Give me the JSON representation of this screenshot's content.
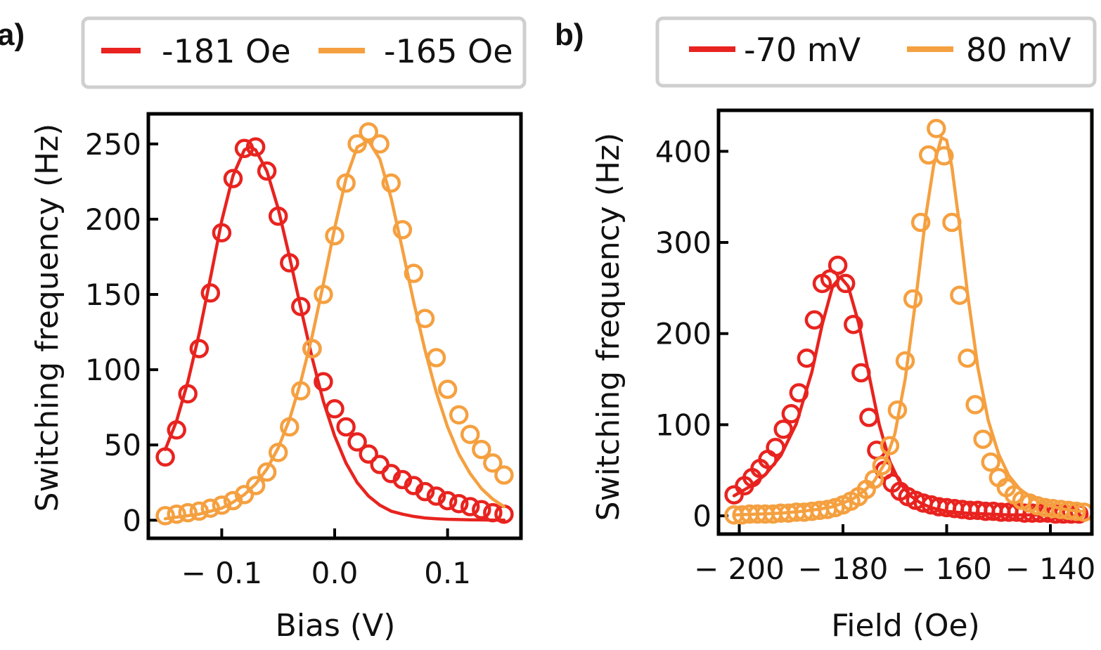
{
  "chart_data": [
    {
      "type": "scatter",
      "panel_label": "a)",
      "title": "",
      "xlabel": "Bias (V)",
      "ylabel": "Switching  frequency  (Hz)",
      "xlim": [
        -0.165,
        0.165
      ],
      "ylim": [
        -12,
        270
      ],
      "xticks": [
        -0.1,
        0.0,
        0.1
      ],
      "xtick_labels": [
        "− 0.1",
        "0.0",
        "0.1"
      ],
      "yticks": [
        0,
        50,
        100,
        150,
        200,
        250
      ],
      "ytick_labels": [
        "0",
        "50",
        "100",
        "150",
        "200",
        "250"
      ],
      "grid": false,
      "legend_position": "top",
      "series": [
        {
          "name": "-181 Oe",
          "color": "#e8231f",
          "marker": "open-circle",
          "x": [
            -0.15,
            -0.14,
            -0.13,
            -0.12,
            -0.11,
            -0.1,
            -0.09,
            -0.08,
            -0.07,
            -0.06,
            -0.05,
            -0.04,
            -0.03,
            -0.02,
            -0.01,
            0.0,
            0.01,
            0.02,
            0.03,
            0.04,
            0.05,
            0.06,
            0.07,
            0.08,
            0.09,
            0.1,
            0.11,
            0.12,
            0.13,
            0.14,
            0.15
          ],
          "y": [
            42,
            60,
            84,
            114,
            151,
            191,
            227,
            247,
            248,
            232,
            202,
            171,
            142,
            114,
            92,
            74,
            62,
            52,
            44,
            37,
            31,
            27,
            23,
            19,
            16,
            13,
            11,
            9,
            7,
            5,
            4
          ],
          "fit_x": [
            -0.15,
            -0.14,
            -0.13,
            -0.12,
            -0.11,
            -0.1,
            -0.09,
            -0.08,
            -0.075,
            -0.07,
            -0.06,
            -0.05,
            -0.04,
            -0.03,
            -0.02,
            -0.01,
            0.0,
            0.01,
            0.02,
            0.03,
            0.04,
            0.05,
            0.06,
            0.07,
            0.08,
            0.09,
            0.1,
            0.11,
            0.12,
            0.13,
            0.14,
            0.15
          ],
          "fit_y": [
            47,
            66,
            92,
            124,
            161,
            199,
            229,
            246,
            248,
            246,
            232,
            207,
            175,
            141,
            108,
            79,
            56,
            38,
            25,
            16,
            10,
            6,
            4,
            2.5,
            1.5,
            1,
            0.6,
            0.4,
            0.3,
            0.2,
            0.1,
            0.1
          ]
        },
        {
          "name": "-165 Oe",
          "color": "#f5a040",
          "marker": "open-circle",
          "x": [
            -0.15,
            -0.14,
            -0.13,
            -0.12,
            -0.11,
            -0.1,
            -0.09,
            -0.08,
            -0.07,
            -0.06,
            -0.05,
            -0.04,
            -0.03,
            -0.02,
            -0.01,
            0.0,
            0.01,
            0.02,
            0.03,
            0.04,
            0.05,
            0.06,
            0.07,
            0.08,
            0.09,
            0.1,
            0.11,
            0.12,
            0.13,
            0.14,
            0.15
          ],
          "y": [
            3,
            4,
            5,
            6,
            8,
            10,
            13,
            17,
            23,
            32,
            45,
            62,
            86,
            114,
            150,
            189,
            224,
            250,
            258,
            250,
            224,
            193,
            164,
            134,
            108,
            87,
            70,
            57,
            47,
            38,
            30
          ],
          "fit_x": [
            -0.15,
            -0.14,
            -0.13,
            -0.12,
            -0.11,
            -0.1,
            -0.09,
            -0.08,
            -0.07,
            -0.06,
            -0.05,
            -0.04,
            -0.03,
            -0.02,
            -0.01,
            0.0,
            0.01,
            0.02,
            0.03,
            0.04,
            0.05,
            0.06,
            0.07,
            0.08,
            0.09,
            0.1,
            0.11,
            0.12,
            0.13,
            0.14,
            0.15
          ],
          "fit_y": [
            1,
            2,
            3,
            4,
            6,
            8,
            12,
            17,
            24,
            34,
            48,
            67,
            92,
            122,
            157,
            194,
            227,
            248,
            252,
            240,
            214,
            180,
            145,
            113,
            85,
            62,
            44,
            31,
            21,
            14,
            9
          ]
        }
      ]
    },
    {
      "type": "scatter",
      "panel_label": "b)",
      "title": "",
      "xlabel": "Field (Oe)",
      "ylabel": "Switching  frequency  (Hz)",
      "xlim": [
        -204,
        -132
      ],
      "ylim": [
        -20,
        445
      ],
      "xticks": [
        -200,
        -180,
        -160,
        -140
      ],
      "xtick_labels": [
        "− 200",
        "− 180",
        "− 160",
        "− 140"
      ],
      "yticks": [
        0,
        100,
        200,
        300,
        400
      ],
      "ytick_labels": [
        "0",
        "100",
        "200",
        "300",
        "400"
      ],
      "grid": false,
      "legend_position": "top",
      "series": [
        {
          "name": "-70 mV",
          "color": "#e8231f",
          "marker": "open-circle",
          "x": [
            -201,
            -199,
            -197.5,
            -196,
            -194.5,
            -193,
            -191.5,
            -190,
            -188.5,
            -187,
            -185.5,
            -184,
            -182.5,
            -181,
            -179.5,
            -178,
            -176.5,
            -175,
            -173.5,
            -172,
            -170.5,
            -169,
            -167.5,
            -166,
            -164.5,
            -163,
            -161.5,
            -160,
            -158.5,
            -157,
            -155.5,
            -154,
            -152.5,
            -151,
            -149.5,
            -148,
            -146.5,
            -145,
            -143.5,
            -142,
            -140.5,
            -139,
            -137.5,
            -136,
            -134.5
          ],
          "y": [
            23,
            33,
            42,
            52,
            62,
            75,
            95,
            112,
            135,
            173,
            215,
            255,
            260,
            275,
            255,
            210,
            157,
            108,
            72,
            50,
            36,
            27,
            21,
            17,
            14,
            12,
            10,
            9,
            8,
            7,
            6,
            6,
            5,
            5,
            4,
            4,
            4,
            3,
            3,
            3,
            3,
            2,
            2,
            2,
            2
          ],
          "fit_x": [
            -201,
            -198,
            -195,
            -192,
            -189,
            -186,
            -184,
            -182,
            -180.5,
            -179,
            -177,
            -175,
            -173,
            -171,
            -169,
            -167,
            -165,
            -163,
            -160,
            -156,
            -152,
            -148,
            -144,
            -140,
            -136,
            -134
          ],
          "fit_y": [
            22,
            32,
            45,
            66,
            101,
            158,
            210,
            252,
            262,
            252,
            212,
            155,
            100,
            60,
            36,
            22,
            14,
            9,
            5,
            3,
            2,
            1,
            1,
            0.5,
            0.3,
            0.2
          ]
        },
        {
          "name": "80 mV",
          "color": "#f5a040",
          "marker": "open-circle",
          "x": [
            -201,
            -199.5,
            -198,
            -196.5,
            -195,
            -193.5,
            -192,
            -190.5,
            -189,
            -187.5,
            -186,
            -184.5,
            -183,
            -181.5,
            -180,
            -178.5,
            -177,
            -175.5,
            -174,
            -172.5,
            -171,
            -169.5,
            -168,
            -166.5,
            -165,
            -163.5,
            -162,
            -160.5,
            -159,
            -157.5,
            -156,
            -154.5,
            -153,
            -151.5,
            -150,
            -148.5,
            -147,
            -145.5,
            -144,
            -142.5,
            -141,
            -139.5,
            -138,
            -136.5,
            -135,
            -133.5
          ],
          "y": [
            1,
            1,
            2,
            2,
            2,
            2,
            3,
            3,
            4,
            4,
            5,
            6,
            7,
            9,
            12,
            16,
            21,
            29,
            40,
            55,
            77,
            116,
            170,
            238,
            322,
            396,
            425,
            395,
            322,
            242,
            173,
            122,
            84,
            59,
            42,
            31,
            23,
            17,
            14,
            11,
            9,
            8,
            7,
            6,
            5,
            4
          ],
          "fit_x": [
            -201,
            -196,
            -192,
            -188,
            -185,
            -182,
            -180,
            -178,
            -176,
            -174,
            -172,
            -170,
            -168,
            -166,
            -164,
            -162.5,
            -161,
            -160,
            -159,
            -157.5,
            -156,
            -154,
            -152,
            -150,
            -148,
            -146,
            -144,
            -142,
            -140,
            -138,
            -136,
            -134
          ],
          "fit_y": [
            1,
            2,
            3,
            5,
            7,
            10,
            14,
            19,
            27,
            38,
            57,
            90,
            150,
            236,
            330,
            385,
            415,
            412,
            383,
            318,
            245,
            163,
            105,
            68,
            44,
            30,
            21,
            15,
            11,
            8,
            6,
            5
          ]
        }
      ]
    }
  ]
}
